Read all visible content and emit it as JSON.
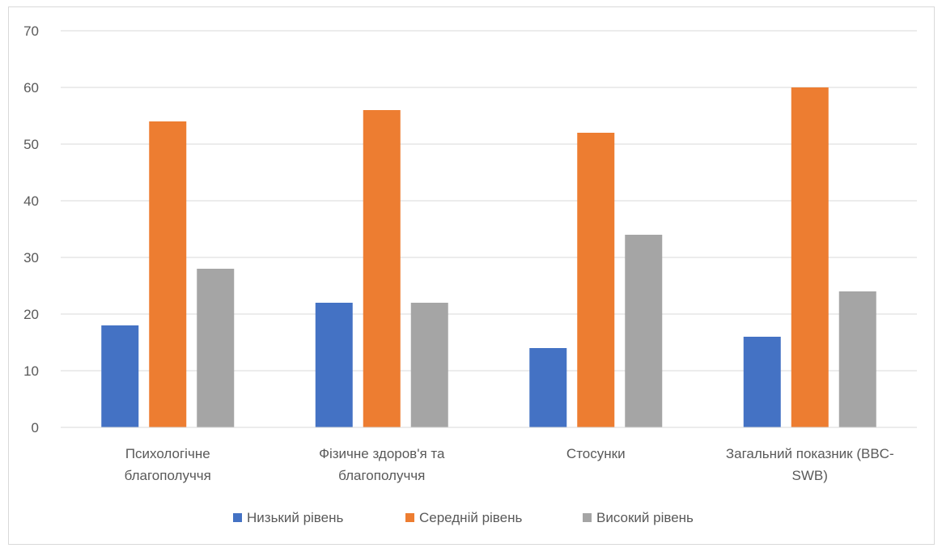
{
  "chart_data": {
    "type": "bar",
    "title": "",
    "xlabel": "",
    "ylabel": "",
    "ylim": [
      0,
      70
    ],
    "yticks": [
      "0",
      "10",
      "20",
      "30",
      "40",
      "50",
      "60",
      "70"
    ],
    "categories": [
      [
        "Психологічне",
        "благополуччя"
      ],
      [
        "Фізичне здоров'я та",
        "благополуччя"
      ],
      [
        "Стосунки"
      ],
      [
        "Загальний показник (BBC-",
        "SWB)"
      ]
    ],
    "series": [
      {
        "name": "Низький рівень",
        "color": "#4472c4",
        "values": [
          18,
          22,
          14,
          16
        ]
      },
      {
        "name": "Середній рівень",
        "color": "#ed7d31",
        "values": [
          54,
          56,
          52,
          60
        ]
      },
      {
        "name": "Високий рівень",
        "color": "#a5a5a5",
        "values": [
          28,
          22,
          34,
          24
        ]
      }
    ],
    "grid": true,
    "gridline_color": "#d9d9d9",
    "legend_position": "bottom"
  }
}
